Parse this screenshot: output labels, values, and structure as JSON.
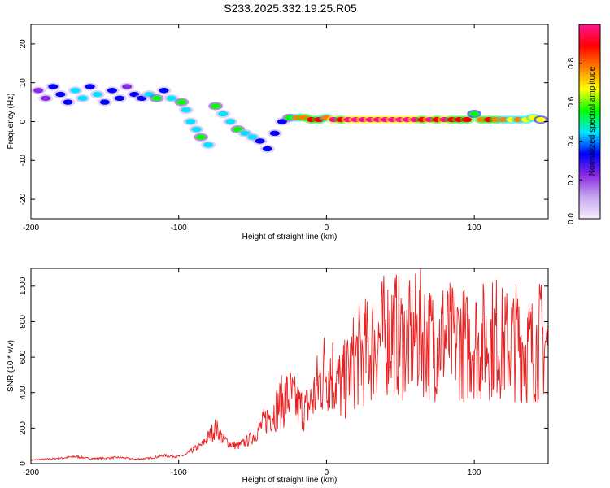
{
  "title": "S233.2025.332.19.25.R05",
  "chart_data": [
    {
      "type": "heatmap",
      "xlabel": "Height of straight line (km)",
      "ylabel": "Frequency (Hz)",
      "xlim": [
        -200,
        150
      ],
      "ylim": [
        -25,
        25
      ],
      "xticks": [
        -200,
        -100,
        0,
        100
      ],
      "yticks": [
        20,
        10,
        0,
        -10,
        -20
      ],
      "grid": false,
      "colorbar": {
        "label": "Normalized spectral amplitude",
        "ticks": [
          0.0,
          0.2,
          0.4,
          0.6,
          0.8
        ],
        "range": [
          0,
          1
        ],
        "colors": [
          "#f4eefc",
          "#c8a8f0",
          "#8a2be2",
          "#0000ff",
          "#00e5ff",
          "#00ff00",
          "#ffff00",
          "#ff7f00",
          "#ff0000",
          "#ff1493"
        ]
      },
      "blobs": [
        {
          "x": -195,
          "y": 8,
          "v": 0.25
        },
        {
          "x": -190,
          "y": 6,
          "v": 0.2
        },
        {
          "x": -185,
          "y": 9,
          "v": 0.3
        },
        {
          "x": -180,
          "y": 7,
          "v": 0.35
        },
        {
          "x": -175,
          "y": 5,
          "v": 0.3
        },
        {
          "x": -170,
          "y": 8,
          "v": 0.4
        },
        {
          "x": -165,
          "y": 6,
          "v": 0.45
        },
        {
          "x": -160,
          "y": 9,
          "v": 0.3
        },
        {
          "x": -155,
          "y": 7,
          "v": 0.4
        },
        {
          "x": -150,
          "y": 5,
          "v": 0.35
        },
        {
          "x": -145,
          "y": 8,
          "v": 0.3
        },
        {
          "x": -140,
          "y": 6,
          "v": 0.3
        },
        {
          "x": -135,
          "y": 9,
          "v": 0.25
        },
        {
          "x": -130,
          "y": 7,
          "v": 0.3
        },
        {
          "x": -125,
          "y": 6,
          "v": 0.35
        },
        {
          "x": -120,
          "y": 7,
          "v": 0.45
        },
        {
          "x": -115,
          "y": 6,
          "v": 0.5
        },
        {
          "x": -110,
          "y": 8,
          "v": 0.35
        },
        {
          "x": -105,
          "y": 6,
          "v": 0.4
        },
        {
          "x": -98,
          "y": 5,
          "v": 0.55
        },
        {
          "x": -95,
          "y": 3,
          "v": 0.45
        },
        {
          "x": -92,
          "y": 0,
          "v": 0.4
        },
        {
          "x": -88,
          "y": -2,
          "v": 0.45
        },
        {
          "x": -85,
          "y": -4,
          "v": 0.5
        },
        {
          "x": -80,
          "y": -6,
          "v": 0.45
        },
        {
          "x": -75,
          "y": 4,
          "v": 0.5
        },
        {
          "x": -70,
          "y": 2,
          "v": 0.45
        },
        {
          "x": -65,
          "y": 0,
          "v": 0.45
        },
        {
          "x": -60,
          "y": -2,
          "v": 0.5
        },
        {
          "x": -55,
          "y": -3,
          "v": 0.45
        },
        {
          "x": -50,
          "y": -4,
          "v": 0.4
        },
        {
          "x": -45,
          "y": -5,
          "v": 0.35
        },
        {
          "x": -40,
          "y": -7,
          "v": 0.3
        },
        {
          "x": -35,
          "y": -3,
          "v": 0.3
        },
        {
          "x": -30,
          "y": 0,
          "v": 0.35
        },
        {
          "x": -25,
          "y": 1,
          "v": 0.55
        },
        {
          "x": -20,
          "y": 1,
          "v": 0.75
        },
        {
          "x": -15,
          "y": 1,
          "v": 0.8
        },
        {
          "x": -10,
          "y": 0.5,
          "v": 0.9
        },
        {
          "x": -5,
          "y": 0.5,
          "v": 0.85
        },
        {
          "x": 0,
          "y": 1,
          "v": 0.75
        },
        {
          "x": 5,
          "y": 0.5,
          "v": 0.95
        },
        {
          "x": 10,
          "y": 0.5,
          "v": 0.9
        },
        {
          "x": 15,
          "y": 0.5,
          "v": 0.95
        },
        {
          "x": 20,
          "y": 0.5,
          "v": 0.95
        },
        {
          "x": 25,
          "y": 0.5,
          "v": 1.0
        },
        {
          "x": 30,
          "y": 0.5,
          "v": 0.95
        },
        {
          "x": 35,
          "y": 0.5,
          "v": 1.0
        },
        {
          "x": 40,
          "y": 0.5,
          "v": 1.0
        },
        {
          "x": 45,
          "y": 0.5,
          "v": 0.95
        },
        {
          "x": 50,
          "y": 0.5,
          "v": 1.0
        },
        {
          "x": 55,
          "y": 0.5,
          "v": 0.95
        },
        {
          "x": 60,
          "y": 0.5,
          "v": 1.0
        },
        {
          "x": 65,
          "y": 0.5,
          "v": 0.9
        },
        {
          "x": 70,
          "y": 0.5,
          "v": 0.95
        },
        {
          "x": 75,
          "y": 0.5,
          "v": 0.9
        },
        {
          "x": 80,
          "y": 0.5,
          "v": 0.95
        },
        {
          "x": 85,
          "y": 0.5,
          "v": 0.9
        },
        {
          "x": 90,
          "y": 0.5,
          "v": 0.85
        },
        {
          "x": 95,
          "y": 0.5,
          "v": 0.85
        },
        {
          "x": 100,
          "y": 2,
          "v": 0.6
        },
        {
          "x": 105,
          "y": 0.5,
          "v": 0.8
        },
        {
          "x": 110,
          "y": 0.5,
          "v": 0.85
        },
        {
          "x": 115,
          "y": 0.5,
          "v": 0.8
        },
        {
          "x": 120,
          "y": 0.5,
          "v": 0.75
        },
        {
          "x": 125,
          "y": 0.5,
          "v": 0.7
        },
        {
          "x": 130,
          "y": 0.5,
          "v": 0.75
        },
        {
          "x": 135,
          "y": 0.5,
          "v": 0.7
        },
        {
          "x": 140,
          "y": 1,
          "v": 0.7
        },
        {
          "x": 145,
          "y": 0.5,
          "v": 0.65
        }
      ]
    },
    {
      "type": "line",
      "xlabel": "Height of straight line (km)",
      "ylabel": "SNR (10 * v/v)",
      "xlim": [
        -200,
        150
      ],
      "ylim": [
        0,
        1100
      ],
      "xticks": [
        -200,
        -100,
        0,
        100
      ],
      "yticks": [
        0,
        200,
        400,
        600,
        800,
        1000
      ],
      "grid": false,
      "color": "#e82020",
      "series": [
        {
          "x": [
            -200,
            -190,
            -180,
            -170,
            -160,
            -150,
            -140,
            -130,
            -120,
            -110,
            -100,
            -95,
            -90,
            -85,
            -80,
            -75,
            -70,
            -65,
            -60,
            -55,
            -50,
            -45,
            -40,
            -35,
            -30,
            -25,
            -20,
            -15,
            -10,
            -5,
            0,
            5,
            10,
            15,
            20,
            25,
            30,
            35,
            40,
            45,
            50,
            55,
            60,
            65,
            70,
            75,
            80,
            85,
            90,
            95,
            100,
            103,
            106,
            110,
            115,
            120,
            125,
            130,
            135,
            140,
            145,
            150
          ],
          "y": [
            20,
            25,
            30,
            40,
            28,
            30,
            35,
            25,
            30,
            45,
            40,
            50,
            80,
            100,
            150,
            200,
            140,
            110,
            100,
            120,
            150,
            200,
            260,
            300,
            350,
            380,
            330,
            300,
            350,
            450,
            550,
            500,
            430,
            510,
            600,
            620,
            650,
            700,
            720,
            760,
            700,
            680,
            720,
            740,
            680,
            700,
            720,
            680,
            700,
            660,
            720,
            650,
            690,
            700,
            720,
            660,
            680,
            700,
            650,
            640,
            700,
            660
          ]
        }
      ]
    }
  ]
}
